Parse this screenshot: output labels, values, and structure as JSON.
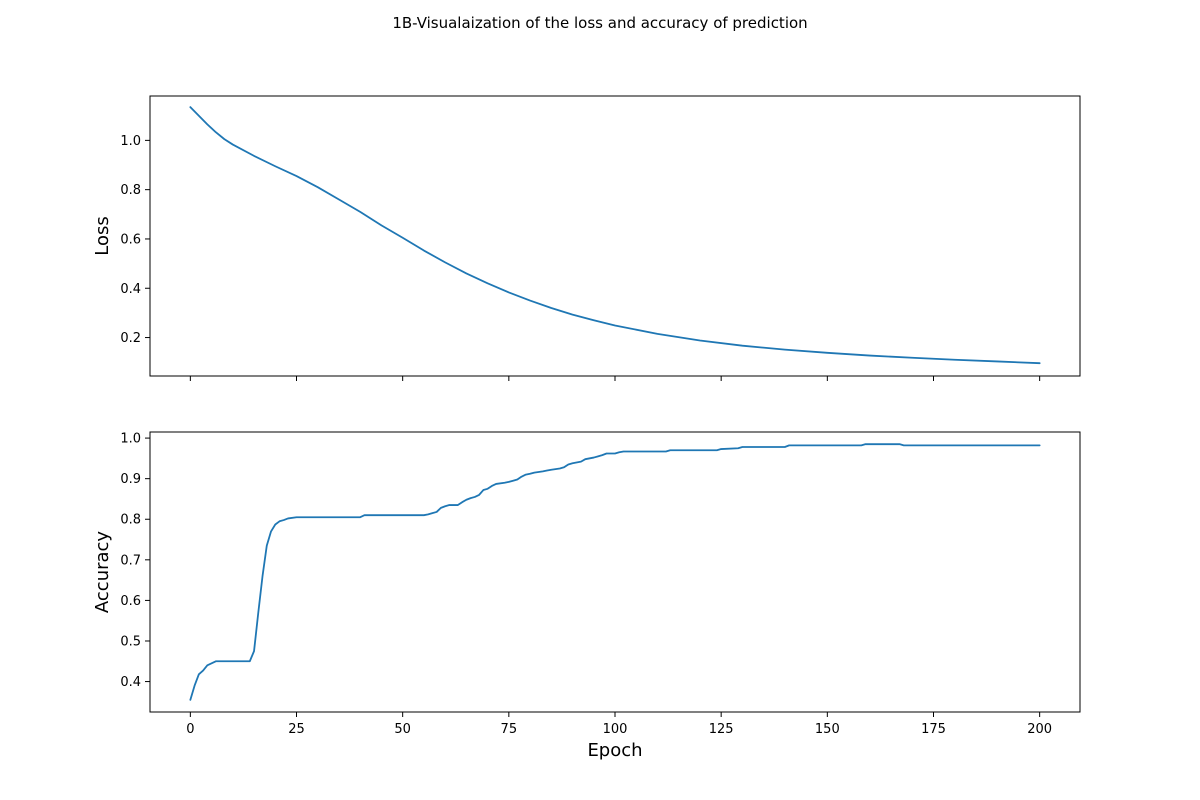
{
  "figure": {
    "suptitle": "1B-Visualaization of the loss and accuracy of prediction"
  },
  "chart_data": [
    {
      "type": "line",
      "title": "",
      "xlabel": "",
      "ylabel": "Loss",
      "xlim": [
        -9.5,
        209.5
      ],
      "ylim": [
        0.044,
        1.18
      ],
      "xticks": [
        0,
        25,
        50,
        75,
        100,
        125,
        150,
        175,
        200
      ],
      "xtick_labels_visible": false,
      "yticks": [
        0.2,
        0.4,
        0.6,
        0.8,
        1.0
      ],
      "ytick_labels": [
        "0.2",
        "0.4",
        "0.6",
        "0.8",
        "1.0"
      ],
      "grid": false,
      "color": "#1f77b4",
      "x": [
        0,
        2,
        4,
        6,
        8,
        10,
        15,
        20,
        25,
        30,
        35,
        40,
        45,
        50,
        55,
        60,
        65,
        70,
        75,
        80,
        85,
        90,
        95,
        100,
        110,
        120,
        130,
        140,
        150,
        160,
        170,
        180,
        190,
        200
      ],
      "values": [
        1.135,
        1.1,
        1.065,
        1.033,
        1.005,
        0.983,
        0.937,
        0.895,
        0.855,
        0.81,
        0.76,
        0.71,
        0.655,
        0.605,
        0.553,
        0.505,
        0.46,
        0.42,
        0.383,
        0.35,
        0.32,
        0.293,
        0.27,
        0.249,
        0.215,
        0.188,
        0.167,
        0.151,
        0.138,
        0.127,
        0.118,
        0.11,
        0.103,
        0.096
      ]
    },
    {
      "type": "line",
      "title": "",
      "xlabel": "Epoch",
      "ylabel": "Accuracy",
      "xlim": [
        -9.5,
        209.5
      ],
      "ylim": [
        0.325,
        1.015
      ],
      "xticks": [
        0,
        25,
        50,
        75,
        100,
        125,
        150,
        175,
        200
      ],
      "xtick_labels": [
        "0",
        "25",
        "50",
        "75",
        "100",
        "125",
        "150",
        "175",
        "200"
      ],
      "yticks": [
        0.4,
        0.5,
        0.6,
        0.7,
        0.8,
        0.9,
        1.0
      ],
      "ytick_labels": [
        "0.4",
        "0.5",
        "0.6",
        "0.7",
        "0.8",
        "0.9",
        "1.0"
      ],
      "grid": false,
      "color": "#1f77b4",
      "x": [
        0,
        1,
        2,
        3,
        4,
        5,
        6,
        7,
        14,
        15,
        16,
        17,
        18,
        19,
        20,
        21,
        22,
        23,
        25,
        40,
        41,
        55,
        56,
        57,
        58,
        59,
        60,
        61,
        63,
        64,
        65,
        66,
        67,
        68,
        69,
        70,
        71,
        72,
        74,
        75,
        76,
        77,
        78,
        79,
        80,
        81,
        83,
        84,
        85,
        87,
        88,
        89,
        90,
        92,
        93,
        95,
        96,
        97,
        98,
        100,
        101,
        102,
        112,
        113,
        124,
        125,
        129,
        130,
        140,
        141,
        158,
        159,
        167,
        168,
        200
      ],
      "values": [
        0.355,
        0.39,
        0.418,
        0.427,
        0.44,
        0.445,
        0.45,
        0.45,
        0.45,
        0.475,
        0.57,
        0.66,
        0.735,
        0.77,
        0.787,
        0.795,
        0.798,
        0.802,
        0.805,
        0.805,
        0.81,
        0.81,
        0.812,
        0.815,
        0.818,
        0.828,
        0.832,
        0.835,
        0.835,
        0.842,
        0.848,
        0.852,
        0.855,
        0.86,
        0.872,
        0.875,
        0.882,
        0.887,
        0.89,
        0.892,
        0.895,
        0.898,
        0.905,
        0.91,
        0.912,
        0.915,
        0.918,
        0.92,
        0.922,
        0.925,
        0.928,
        0.935,
        0.938,
        0.942,
        0.948,
        0.952,
        0.955,
        0.958,
        0.962,
        0.962,
        0.965,
        0.967,
        0.967,
        0.97,
        0.97,
        0.973,
        0.975,
        0.978,
        0.978,
        0.982,
        0.982,
        0.985,
        0.985,
        0.982,
        0.982
      ]
    }
  ]
}
